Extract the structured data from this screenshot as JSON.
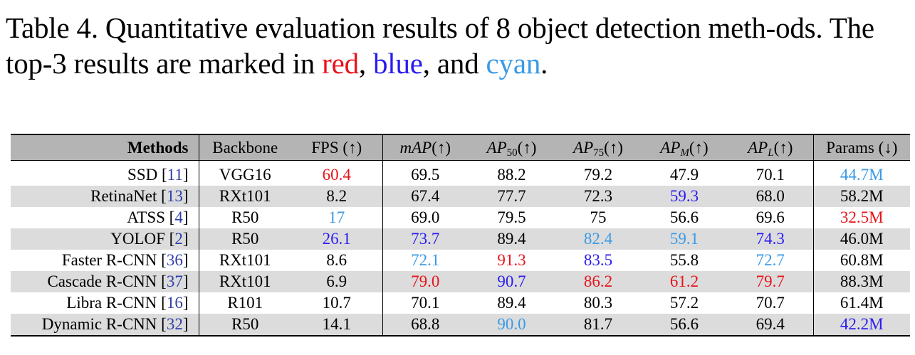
{
  "caption": {
    "part1": "Table 4. Quantitative evaluation results of 8 object detection meth-ods. The top-3 results are marked in ",
    "red_word": "red",
    "sep1": ", ",
    "blue_word": "blue",
    "sep2": ", and ",
    "cyan_word": "cyan",
    "end": "."
  },
  "colors": {
    "first": "#e8141b",
    "second": "#2b1cf0",
    "third": "#3a9ae6",
    "header_bg": "#b4b4b4",
    "row_shade": "#dcdcdc"
  },
  "header": {
    "methods": "Methods",
    "backbone": "Backbone",
    "fps": "FPS (↑)",
    "map": "mAP",
    "map_arrow": "(↑)",
    "ap50": "AP",
    "ap50_sub": "50",
    "ap50_arrow": "(↑)",
    "ap75": "AP",
    "ap75_sub": "75",
    "ap75_arrow": "(↑)",
    "apm": "AP",
    "apm_sub": "M",
    "apm_arrow": "(↑)",
    "apl": "AP",
    "apl_sub": "L",
    "apl_arrow": "(↑)",
    "params": "Params (↓)"
  },
  "rows": [
    {
      "name": "SSD",
      "ref": "11",
      "backbone": "VGG16",
      "fps": "60.4",
      "map": "69.5",
      "ap50": "88.2",
      "ap75": "79.2",
      "apm": "47.9",
      "apl": "70.1",
      "params": "44.7M",
      "rank": {
        "fps": "first",
        "params": "third"
      }
    },
    {
      "name": "RetinaNet",
      "ref": "13",
      "backbone": "RXt101",
      "fps": "8.2",
      "map": "67.4",
      "ap50": "77.7",
      "ap75": "72.3",
      "apm": "59.3",
      "apl": "68.0",
      "params": "58.2M",
      "rank": {
        "apm": "second"
      }
    },
    {
      "name": "ATSS",
      "ref": "4",
      "backbone": "R50",
      "fps": "17",
      "map": "69.0",
      "ap50": "79.5",
      "ap75": "75",
      "apm": "56.6",
      "apl": "69.6",
      "params": "32.5M",
      "rank": {
        "fps": "third",
        "params": "first"
      }
    },
    {
      "name": "YOLOF",
      "ref": "2",
      "backbone": "R50",
      "fps": "26.1",
      "map": "73.7",
      "ap50": "89.4",
      "ap75": "82.4",
      "apm": "59.1",
      "apl": "74.3",
      "params": "46.0M",
      "rank": {
        "fps": "second",
        "map": "second",
        "ap75": "third",
        "apm": "third",
        "apl": "second"
      }
    },
    {
      "name": "Faster R-CNN",
      "ref": "36",
      "backbone": "RXt101",
      "fps": "8.6",
      "map": "72.1",
      "ap50": "91.3",
      "ap75": "83.5",
      "apm": "55.8",
      "apl": "72.7",
      "params": "60.8M",
      "rank": {
        "map": "third",
        "ap50": "first",
        "ap75": "second",
        "apl": "third"
      }
    },
    {
      "name": "Cascade R-CNN",
      "ref": "37",
      "backbone": "RXt101",
      "fps": "6.9",
      "map": "79.0",
      "ap50": "90.7",
      "ap75": "86.2",
      "apm": "61.2",
      "apl": "79.7",
      "params": "88.3M",
      "rank": {
        "map": "first",
        "ap50": "second",
        "ap75": "first",
        "apm": "first",
        "apl": "first"
      }
    },
    {
      "name": "Libra R-CNN",
      "ref": "16",
      "backbone": "R101",
      "fps": "10.7",
      "map": "70.1",
      "ap50": "89.4",
      "ap75": "80.3",
      "apm": "57.2",
      "apl": "70.7",
      "params": "61.4M",
      "rank": {}
    },
    {
      "name": "Dynamic R-CNN",
      "ref": "32",
      "backbone": "R50",
      "fps": "14.1",
      "map": "68.8",
      "ap50": "90.0",
      "ap75": "81.7",
      "apm": "56.6",
      "apl": "69.4",
      "params": "42.2M",
      "rank": {
        "ap50": "third",
        "params": "second"
      }
    }
  ]
}
